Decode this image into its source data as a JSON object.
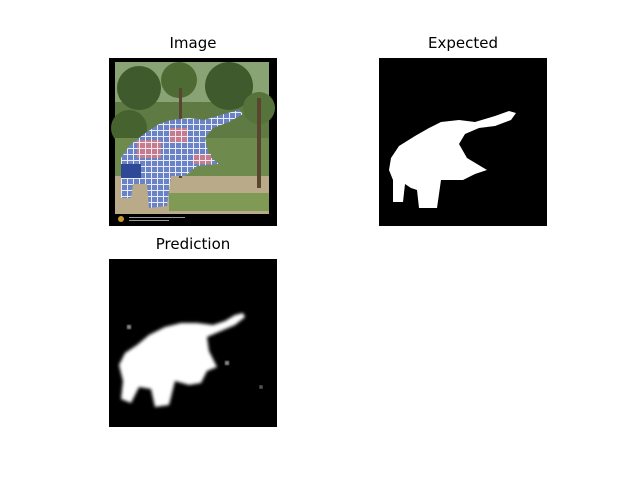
{
  "figure": {
    "panels": [
      {
        "title": "Image"
      },
      {
        "title": "Expected"
      },
      {
        "title": "Prediction"
      }
    ]
  },
  "colors": {
    "background": "#ffffff",
    "mask_background": "#000000",
    "mask_foreground": "#ffffff",
    "mosaic_blue": "#6a82c6",
    "mosaic_pink": "#c47c8e",
    "mosaic_grid": "#e8ecf8",
    "foliage_dark": "#3f5a2c",
    "foliage_light": "#7f9a55",
    "ground": "#b9ab8a"
  }
}
